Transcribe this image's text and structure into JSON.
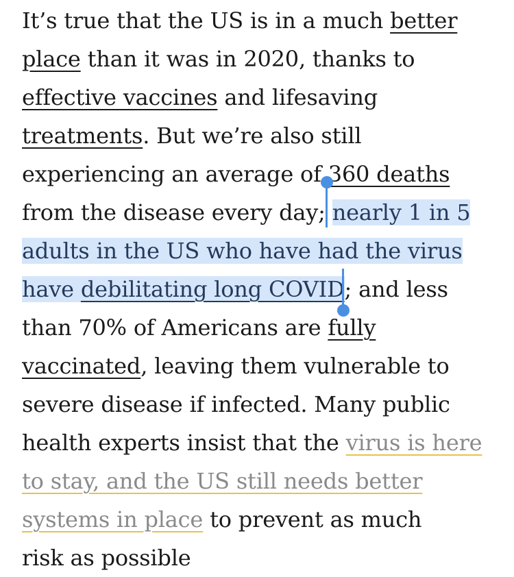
{
  "article": {
    "lines": {
      "l1a": "It’s true that the US is in a much ",
      "l1link": "better",
      "l2link": "place",
      "l2b": " than it was in 2020, thanks to",
      "l3link": "effective vaccines",
      "l3b": " and lifesaving",
      "l4link": "treatments",
      "l4b": ". But we’re also still",
      "l5a": "experiencing an average of ",
      "l5link": "360 deaths",
      "l6a": "from the disease every day; ",
      "l6sel": "nearly 1 in 5",
      "l7sel": "adults in the US who have had the virus",
      "l8sel_a": "have ",
      "l8sel_link": "debilitating long COVID",
      "l8b": "; and less",
      "l9a": "than 70% of Americans are ",
      "l9link": "fully",
      "l10link": "vaccinated",
      "l10b": ", leaving them vulnerable to",
      "l11": "severe disease if infected. Many public",
      "l12a": "health experts insist that the ",
      "l12link": "virus is here",
      "l13link": "to stay, and the US still needs better",
      "l14link": "systems in place",
      "l14b": " to prevent as much",
      "l15": "risk as possible"
    }
  },
  "colors": {
    "text": "#1a1a1a",
    "selection": "#d5e6fb",
    "selection_handle": "#4a90e2",
    "link_underline_highlight": "#e8c24a",
    "muted_link_text": "#8a8a8a"
  }
}
